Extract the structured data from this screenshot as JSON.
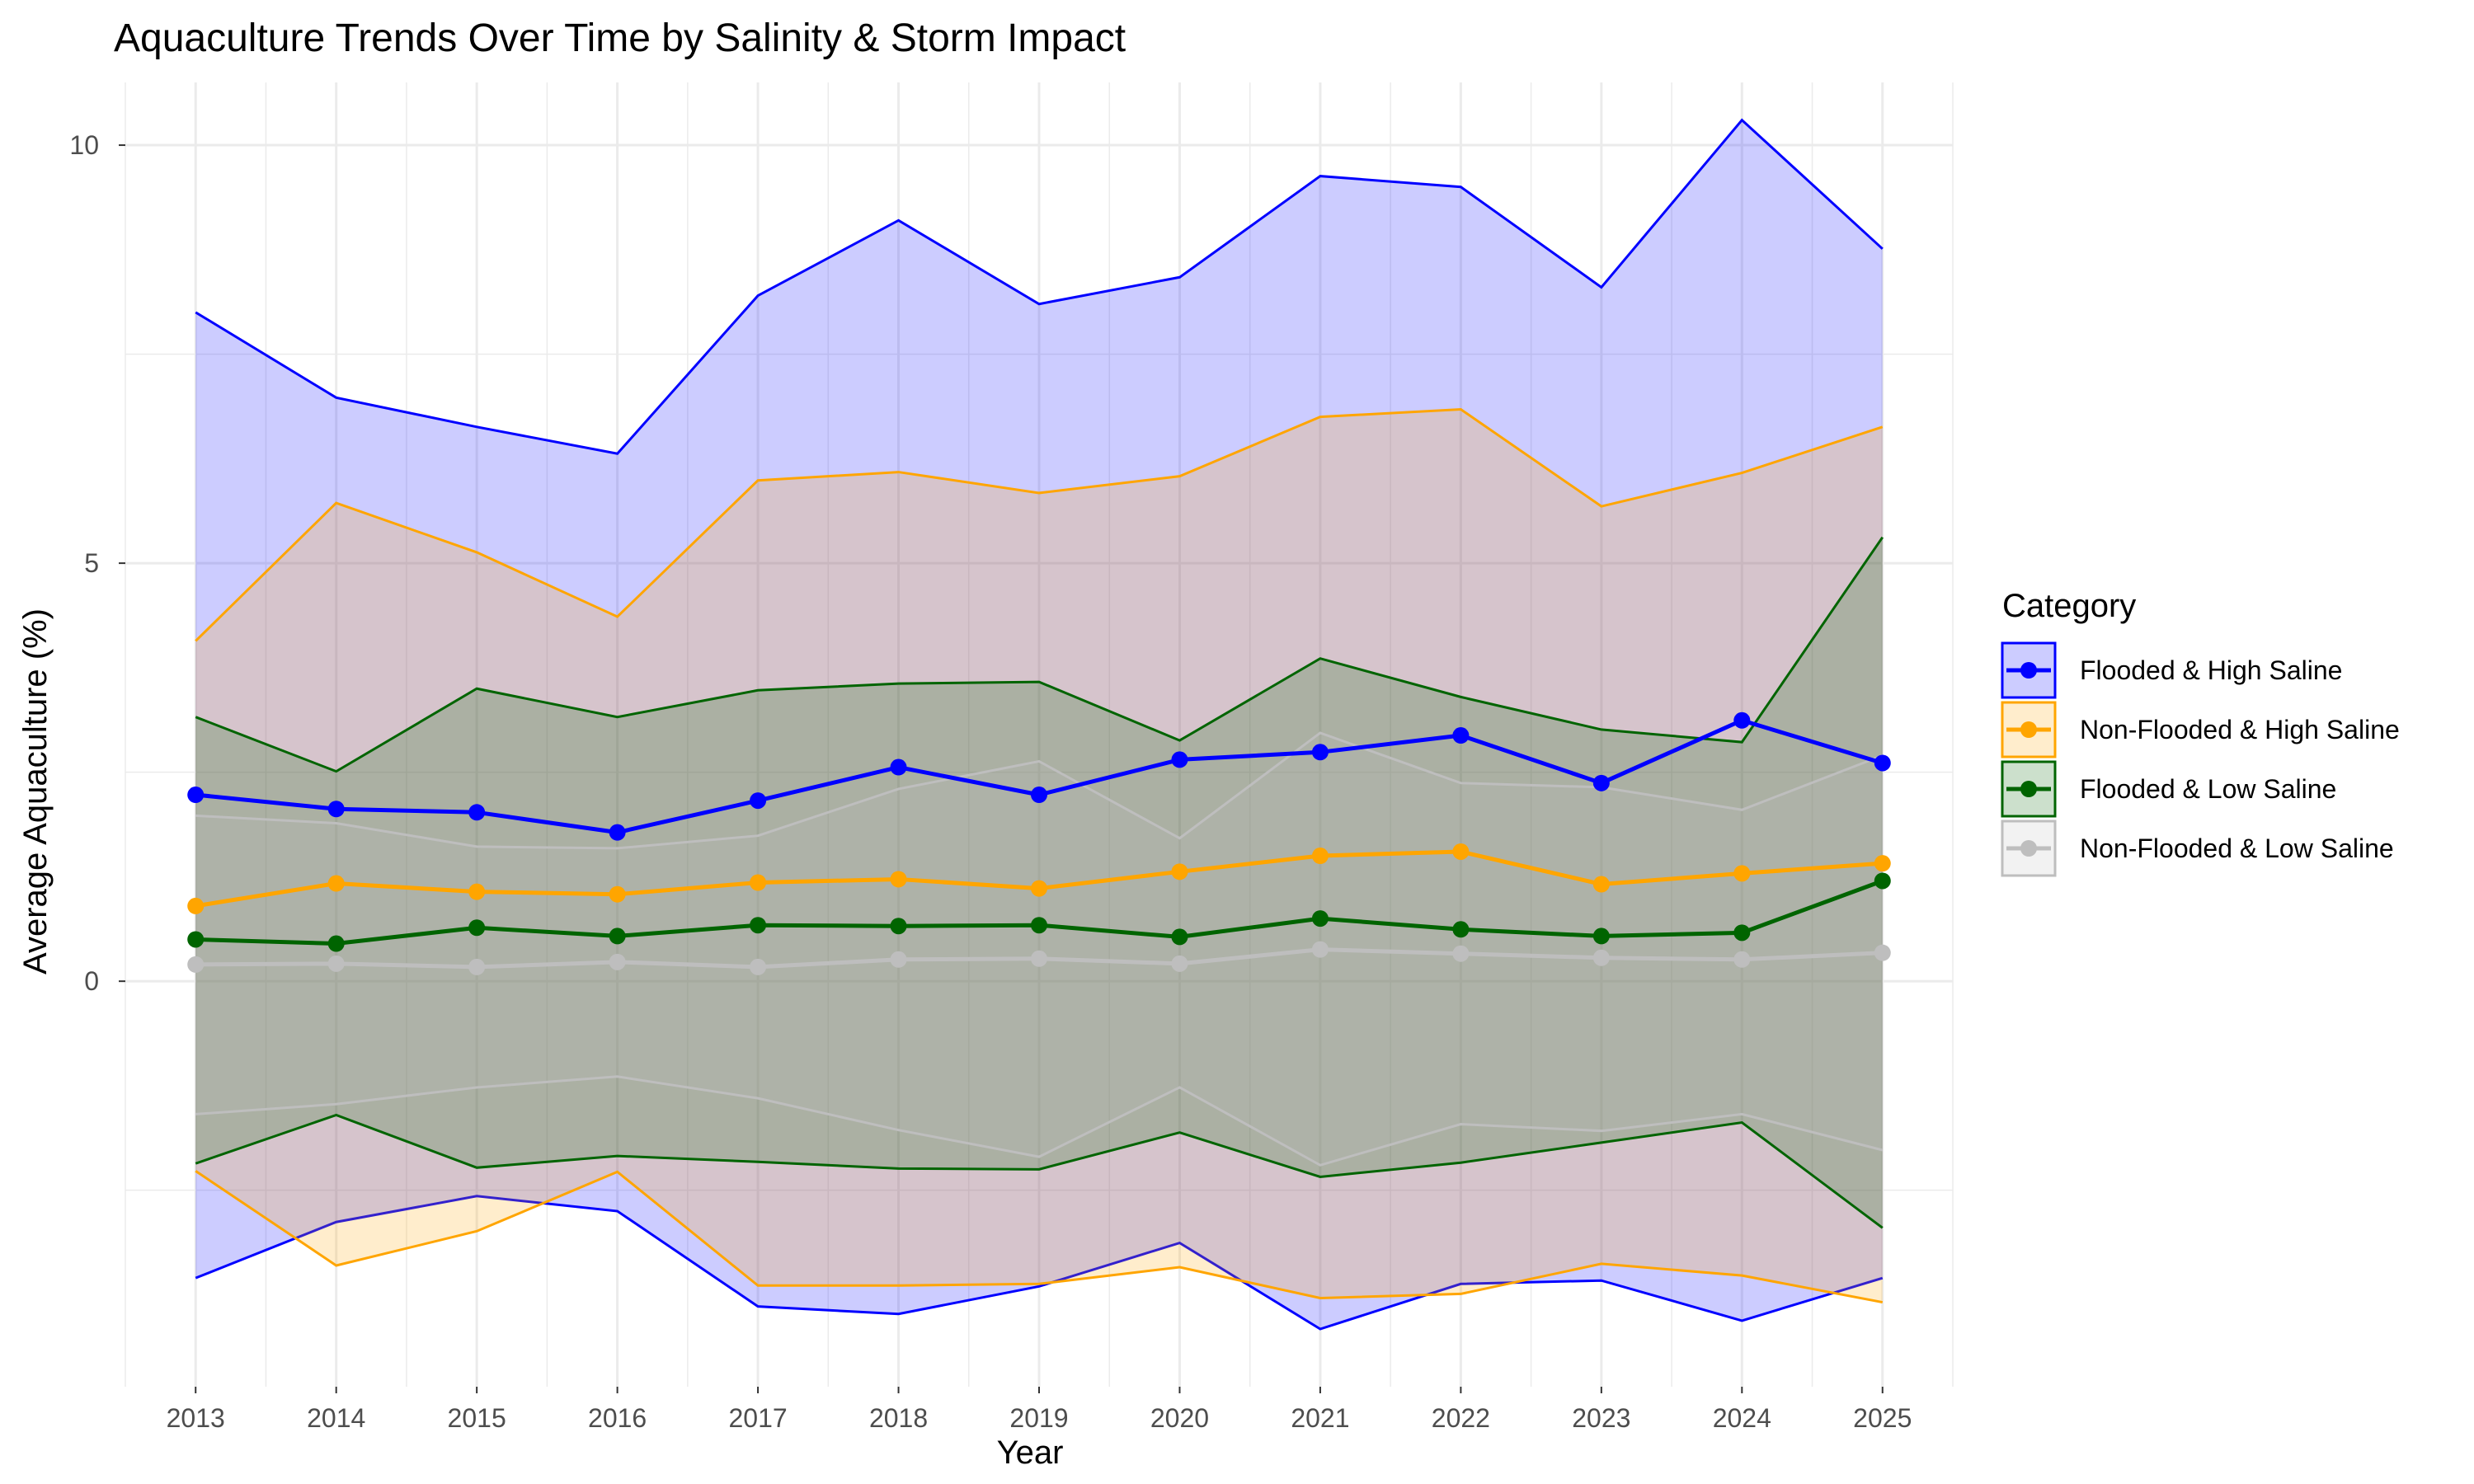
{
  "chart_data": {
    "type": "line",
    "title": "Aquaculture Trends Over Time by Salinity & Storm Impact",
    "xlabel": "Year",
    "ylabel": "Average Aquaculture (%)",
    "x": [
      2013,
      2014,
      2015,
      2016,
      2017,
      2018,
      2019,
      2020,
      2021,
      2022,
      2023,
      2024,
      2025
    ],
    "x_tick_labels": [
      "2013",
      "2014",
      "2015",
      "2016",
      "2017",
      "2018",
      "2019",
      "2020",
      "2021",
      "2022",
      "2023",
      "2024",
      "2025"
    ],
    "xlim": [
      2012.5,
      2025.5
    ],
    "ylim": [
      -4.85,
      10.75
    ],
    "y_ticks": [
      0,
      5,
      10
    ],
    "y_tick_labels": [
      "0",
      "5",
      "10"
    ],
    "grid": true,
    "legend": {
      "title": "Category",
      "placement": "right"
    },
    "series": [
      {
        "name": "Flooded & High Saline",
        "color": "#0000ff",
        "fill": "#0000ff",
        "fill_opacity": 0.2,
        "line_width": 5,
        "mean": [
          2.23,
          2.06,
          2.02,
          1.78,
          2.16,
          2.56,
          2.23,
          2.65,
          2.74,
          2.94,
          2.37,
          3.12,
          2.61
        ],
        "upper": [
          8.0,
          6.98,
          6.63,
          6.31,
          8.2,
          9.1,
          8.1,
          8.42,
          9.63,
          9.5,
          8.3,
          10.3,
          8.76
        ],
        "lower": [
          -3.55,
          -2.88,
          -2.57,
          -2.75,
          -3.89,
          -3.98,
          -3.65,
          -3.13,
          -4.16,
          -3.62,
          -3.58,
          -4.06,
          -3.55
        ]
      },
      {
        "name": "Non-Flooded & High Saline",
        "color": "#ffa500",
        "fill": "#ffa500",
        "fill_opacity": 0.2,
        "line_width": 5,
        "mean": [
          0.9,
          1.17,
          1.07,
          1.04,
          1.18,
          1.22,
          1.11,
          1.31,
          1.5,
          1.55,
          1.16,
          1.29,
          1.41
        ],
        "upper": [
          4.07,
          5.72,
          5.13,
          4.36,
          5.99,
          6.09,
          5.84,
          6.04,
          6.75,
          6.84,
          5.68,
          6.08,
          6.63
        ],
        "lower": [
          -2.27,
          -3.4,
          -2.99,
          -2.28,
          -3.64,
          -3.64,
          -3.62,
          -3.42,
          -3.79,
          -3.74,
          -3.38,
          -3.52,
          -3.84
        ]
      },
      {
        "name": "Flooded & Low Saline",
        "color": "#006400",
        "fill": "#006400",
        "fill_opacity": 0.2,
        "line_width": 5,
        "mean": [
          0.5,
          0.45,
          0.64,
          0.54,
          0.67,
          0.66,
          0.67,
          0.53,
          0.75,
          0.62,
          0.54,
          0.58,
          1.2
        ],
        "upper": [
          3.16,
          2.51,
          3.5,
          3.16,
          3.48,
          3.56,
          3.58,
          2.88,
          3.86,
          3.4,
          3.01,
          2.86,
          5.31
        ],
        "lower": [
          -2.18,
          -1.6,
          -2.23,
          -2.09,
          -2.16,
          -2.24,
          -2.25,
          -1.81,
          -2.34,
          -2.17,
          -1.93,
          -1.69,
          -2.95
        ]
      },
      {
        "name": "Non-Flooded & Low Saline",
        "color": "#bebebe",
        "fill": "#bebebe",
        "fill_opacity": 0.2,
        "line_width": 5,
        "mean": [
          0.2,
          0.21,
          0.17,
          0.23,
          0.17,
          0.26,
          0.27,
          0.21,
          0.38,
          0.33,
          0.28,
          0.26,
          0.34
        ],
        "upper": [
          1.98,
          1.89,
          1.61,
          1.59,
          1.74,
          2.3,
          2.63,
          1.71,
          2.97,
          2.37,
          2.32,
          2.05,
          2.7
        ],
        "lower": [
          -1.59,
          -1.47,
          -1.27,
          -1.14,
          -1.4,
          -1.78,
          -2.1,
          -1.27,
          -2.2,
          -1.71,
          -1.79,
          -1.59,
          -2.02
        ]
      }
    ]
  }
}
